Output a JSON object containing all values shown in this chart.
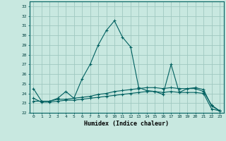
{
  "xlabel": "Humidex (Indice chaleur)",
  "background_color": "#c8e8e0",
  "grid_color": "#a0c8c0",
  "line_color": "#006060",
  "xlim": [
    -0.5,
    23.5
  ],
  "ylim": [
    22,
    33.5
  ],
  "yticks": [
    22,
    23,
    24,
    25,
    26,
    27,
    28,
    29,
    30,
    31,
    32,
    33
  ],
  "xticks": [
    0,
    1,
    2,
    3,
    4,
    5,
    6,
    7,
    8,
    9,
    10,
    11,
    12,
    13,
    14,
    15,
    16,
    17,
    18,
    19,
    20,
    21,
    22,
    23
  ],
  "series1": [
    24.5,
    23.2,
    23.2,
    23.5,
    24.2,
    23.5,
    25.5,
    27.0,
    29.0,
    30.5,
    31.5,
    29.8,
    28.8,
    24.6,
    24.3,
    24.2,
    23.9,
    27.0,
    24.1,
    24.5,
    24.5,
    24.2,
    22.8,
    22.2
  ],
  "series2": [
    23.2,
    23.2,
    23.2,
    23.4,
    23.4,
    23.5,
    23.6,
    23.7,
    23.9,
    24.0,
    24.2,
    24.3,
    24.4,
    24.5,
    24.6,
    24.6,
    24.5,
    24.6,
    24.5,
    24.5,
    24.6,
    24.4,
    22.7,
    22.2
  ],
  "series3": [
    23.5,
    23.1,
    23.1,
    23.2,
    23.3,
    23.3,
    23.4,
    23.5,
    23.6,
    23.7,
    23.8,
    23.9,
    24.0,
    24.1,
    24.2,
    24.2,
    24.1,
    24.2,
    24.1,
    24.1,
    24.1,
    24.0,
    22.4,
    22.2
  ]
}
